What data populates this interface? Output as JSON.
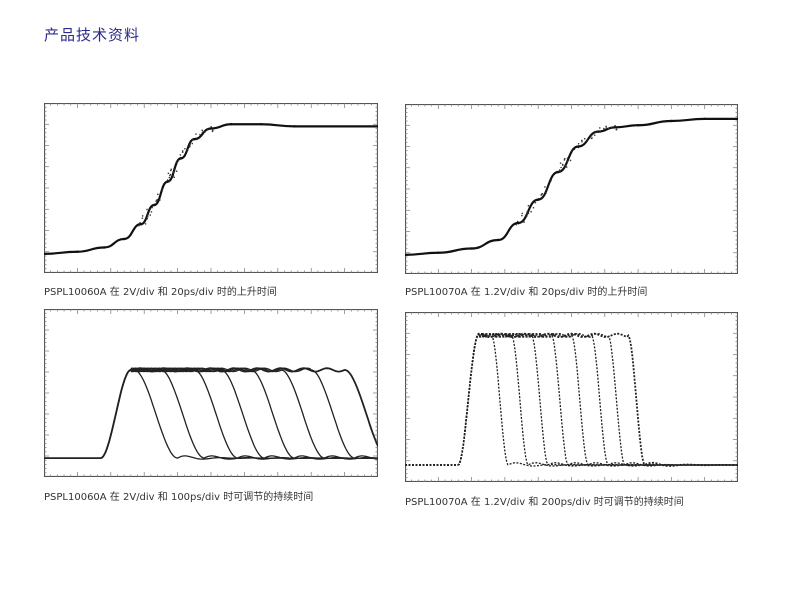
{
  "page": {
    "title": "产品技术资料"
  },
  "captions": [
    "PSPL10060A 在 2V/div 和 20ps/div 时的上升时间",
    "PSPL10070A 在 1.2V/div 和 20ps/div 时的上升时间",
    "PSPL10060A 在 2V/div 和 100ps/div 时可调节的持续时间",
    "PSPL10070A 在 1.2V/div 和 200ps/div 时可调节的持续时间"
  ],
  "chart_data": [
    {
      "type": "line",
      "title": "PSPL10060A 在 2V/div 和 20ps/div 时的上升时间",
      "grid": false,
      "xlim": [
        0,
        10
      ],
      "ylim": [
        0,
        8
      ],
      "series": [
        {
          "x": [
            0.0,
            1.0,
            1.8,
            2.4,
            2.9,
            3.3,
            3.7,
            4.1,
            4.5,
            5.0,
            5.6,
            6.5,
            7.5,
            10.0
          ],
          "values": [
            0.9,
            1.0,
            1.2,
            1.6,
            2.3,
            3.2,
            4.3,
            5.4,
            6.3,
            6.8,
            7.0,
            7.0,
            6.9,
            6.9
          ]
        }
      ]
    },
    {
      "type": "line",
      "title": "PSPL10070A 在 1.2V/div 和 20ps/div 时的上升时间",
      "grid": false,
      "xlim": [
        0,
        10
      ],
      "ylim": [
        0,
        8
      ],
      "series": [
        {
          "x": [
            0.0,
            1.0,
            2.0,
            2.8,
            3.4,
            4.0,
            4.6,
            5.2,
            5.8,
            6.3,
            7.0,
            8.0,
            9.0,
            10.0
          ],
          "values": [
            0.9,
            1.0,
            1.2,
            1.6,
            2.4,
            3.5,
            4.8,
            6.0,
            6.7,
            6.9,
            7.0,
            7.2,
            7.3,
            7.3
          ]
        }
      ]
    },
    {
      "type": "line",
      "title": "PSPL10060A 在 2V/div 和 100ps/div 时可调节的持续时间",
      "grid": false,
      "xlim": [
        0,
        10
      ],
      "ylim": [
        0,
        8
      ],
      "pulse": {
        "rise_start": 1.7,
        "rise_end": 2.6,
        "base": 0.9,
        "top": 5.1,
        "fall_starts": [
          2.7,
          3.5,
          4.5,
          5.3,
          6.2,
          7.1,
          8.0,
          9.0
        ],
        "fall_duration": 1.3
      }
    },
    {
      "type": "line",
      "title": "PSPL10070A 在 1.2V/div 和 200ps/div 时可调节的持续时间",
      "grid": false,
      "xlim": [
        0,
        10
      ],
      "ylim": [
        0,
        8
      ],
      "pulse": {
        "rise_start": 1.6,
        "rise_end": 2.2,
        "base": 0.8,
        "top": 6.9,
        "fall_starts": [
          2.6,
          3.2,
          3.8,
          4.4,
          5.0,
          5.6,
          6.1,
          6.7
        ],
        "fall_duration": 0.5
      }
    }
  ]
}
